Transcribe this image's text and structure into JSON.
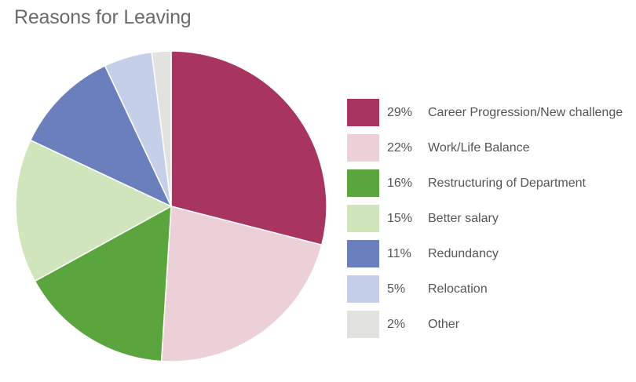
{
  "chart_data": {
    "type": "pie",
    "title": "Reasons for Leaving",
    "slices": [
      {
        "percent_label": "29%",
        "label": "Career Progression/New challenge",
        "value": 29,
        "color": "#a8355f"
      },
      {
        "percent_label": "22%",
        "label": "Work/Life Balance",
        "value": 22,
        "color": "#ebd0d8"
      },
      {
        "percent_label": "16%",
        "label": "Restructuring of Department",
        "value": 16,
        "color": "#5ba53e"
      },
      {
        "percent_label": "15%",
        "label": "Better salary",
        "value": 15,
        "color": "#d1e5bc"
      },
      {
        "percent_label": "11%",
        "label": "Redundancy",
        "value": 11,
        "color": "#6b7fbc"
      },
      {
        "percent_label": "5%",
        "label": "Relocation",
        "value": 5,
        "color": "#c5cfea"
      },
      {
        "percent_label": "2%",
        "label": "Other",
        "value": 2,
        "color": "#e2e2e0"
      }
    ],
    "legend_position": "right"
  }
}
